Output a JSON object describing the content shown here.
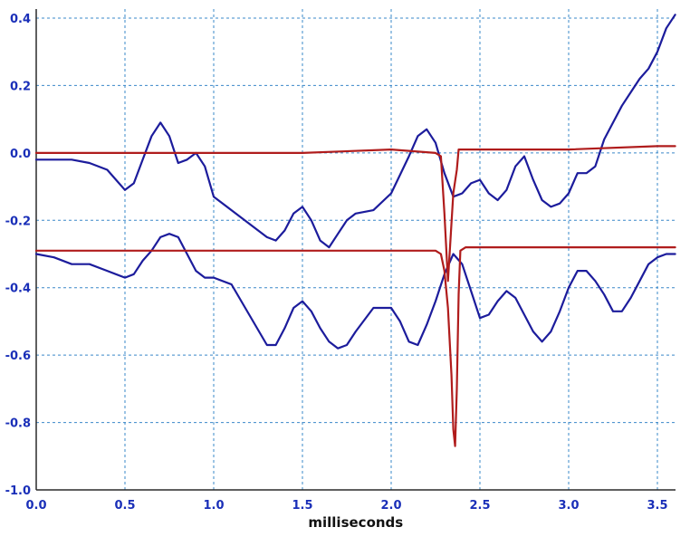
{
  "chart_data": {
    "type": "line",
    "xlabel": "milliseconds",
    "ylabel": "",
    "xlim": [
      0,
      3.6
    ],
    "ylim": [
      -1.0,
      0.45
    ],
    "grid": true,
    "xticks": [
      0.0,
      0.5,
      1.0,
      1.5,
      2.0,
      2.5,
      3.0,
      3.5
    ],
    "xtick_labels": [
      "0.0",
      "0.5",
      "1.0",
      "1.5",
      "2.0",
      "2.5",
      "3.0",
      "3.5"
    ],
    "yticks": [
      0.4,
      0.2,
      0.0,
      -0.2,
      -0.4,
      -0.6,
      -0.8,
      -1.0
    ],
    "ytick_labels": [
      "0.4",
      "0.2",
      "0.0",
      "-0.2",
      "-0.4",
      "-0.6",
      "-0.8",
      "-1.0"
    ],
    "colors": {
      "blue_trace": "#1c1c9c",
      "red_trace": "#b01c1c",
      "grid": "#3a88c9",
      "tick_text": "#1a2fb8"
    },
    "series": [
      {
        "color": "#1c1c9c",
        "x": [
          0.0,
          0.1,
          0.2,
          0.3,
          0.4,
          0.5,
          0.55,
          0.6,
          0.65,
          0.7,
          0.75,
          0.8,
          0.85,
          0.9,
          0.95,
          1.0,
          1.1,
          1.2,
          1.3,
          1.35,
          1.4,
          1.45,
          1.5,
          1.55,
          1.6,
          1.65,
          1.7,
          1.75,
          1.8,
          1.9,
          2.0,
          2.1,
          2.15,
          2.2,
          2.25,
          2.3,
          2.35,
          2.4,
          2.45,
          2.5,
          2.55,
          2.6,
          2.65,
          2.7,
          2.75,
          2.8,
          2.85,
          2.9,
          2.95,
          3.0,
          3.05,
          3.1,
          3.15,
          3.2,
          3.25,
          3.3,
          3.35,
          3.4,
          3.45,
          3.5,
          3.55,
          3.6
        ],
        "y": [
          -0.02,
          -0.02,
          -0.02,
          -0.03,
          -0.05,
          -0.11,
          -0.09,
          -0.02,
          0.05,
          0.09,
          0.05,
          -0.03,
          -0.02,
          0.0,
          -0.04,
          -0.13,
          -0.17,
          -0.21,
          -0.25,
          -0.26,
          -0.23,
          -0.18,
          -0.16,
          -0.2,
          -0.26,
          -0.28,
          -0.24,
          -0.2,
          -0.18,
          -0.17,
          -0.12,
          -0.01,
          0.05,
          0.07,
          0.03,
          -0.06,
          -0.13,
          -0.12,
          -0.09,
          -0.08,
          -0.12,
          -0.14,
          -0.11,
          -0.04,
          -0.01,
          -0.08,
          -0.14,
          -0.16,
          -0.15,
          -0.12,
          -0.06,
          -0.06,
          -0.04,
          0.04,
          0.09,
          0.14,
          0.18,
          0.22,
          0.25,
          0.3,
          0.37,
          0.41
        ]
      },
      {
        "color": "#1c1c9c",
        "x": [
          0.0,
          0.1,
          0.2,
          0.3,
          0.4,
          0.5,
          0.55,
          0.6,
          0.65,
          0.7,
          0.75,
          0.8,
          0.85,
          0.9,
          0.95,
          1.0,
          1.1,
          1.2,
          1.3,
          1.35,
          1.4,
          1.45,
          1.5,
          1.55,
          1.6,
          1.65,
          1.7,
          1.75,
          1.8,
          1.9,
          2.0,
          2.05,
          2.1,
          2.15,
          2.2,
          2.25,
          2.3,
          2.35,
          2.4,
          2.45,
          2.5,
          2.55,
          2.6,
          2.65,
          2.7,
          2.75,
          2.8,
          2.85,
          2.9,
          2.95,
          3.0,
          3.05,
          3.1,
          3.15,
          3.2,
          3.25,
          3.3,
          3.35,
          3.4,
          3.45,
          3.5,
          3.55,
          3.6
        ],
        "y": [
          -0.3,
          -0.31,
          -0.33,
          -0.33,
          -0.35,
          -0.37,
          -0.36,
          -0.32,
          -0.29,
          -0.25,
          -0.24,
          -0.25,
          -0.3,
          -0.35,
          -0.37,
          -0.37,
          -0.39,
          -0.48,
          -0.57,
          -0.57,
          -0.52,
          -0.46,
          -0.44,
          -0.47,
          -0.52,
          -0.56,
          -0.58,
          -0.57,
          -0.53,
          -0.46,
          -0.46,
          -0.5,
          -0.56,
          -0.57,
          -0.51,
          -0.44,
          -0.36,
          -0.3,
          -0.33,
          -0.41,
          -0.49,
          -0.48,
          -0.44,
          -0.41,
          -0.43,
          -0.48,
          -0.53,
          -0.56,
          -0.53,
          -0.47,
          -0.4,
          -0.35,
          -0.35,
          -0.38,
          -0.42,
          -0.47,
          -0.47,
          -0.43,
          -0.38,
          -0.33,
          -0.31,
          -0.3,
          -0.3
        ]
      },
      {
        "color": "#b01c1c",
        "x": [
          0.0,
          0.5,
          1.0,
          1.5,
          2.0,
          2.25,
          2.28,
          2.3,
          2.32,
          2.35,
          2.37,
          2.38,
          2.39,
          2.42,
          2.5,
          3.0,
          3.5,
          3.6
        ],
        "y": [
          0.0,
          0.0,
          0.0,
          0.0,
          0.01,
          0.0,
          -0.01,
          -0.18,
          -0.38,
          -0.12,
          -0.05,
          0.01,
          0.01,
          0.01,
          0.01,
          0.01,
          0.02,
          0.02
        ]
      },
      {
        "color": "#b01c1c",
        "x": [
          0.0,
          0.5,
          1.0,
          1.5,
          2.0,
          2.25,
          2.28,
          2.3,
          2.32,
          2.34,
          2.35,
          2.36,
          2.37,
          2.38,
          2.39,
          2.42,
          2.5,
          3.0,
          3.5,
          3.6
        ],
        "y": [
          -0.29,
          -0.29,
          -0.29,
          -0.29,
          -0.29,
          -0.29,
          -0.3,
          -0.35,
          -0.46,
          -0.66,
          -0.82,
          -0.87,
          -0.7,
          -0.42,
          -0.29,
          -0.28,
          -0.28,
          -0.28,
          -0.28,
          -0.28
        ]
      }
    ]
  }
}
